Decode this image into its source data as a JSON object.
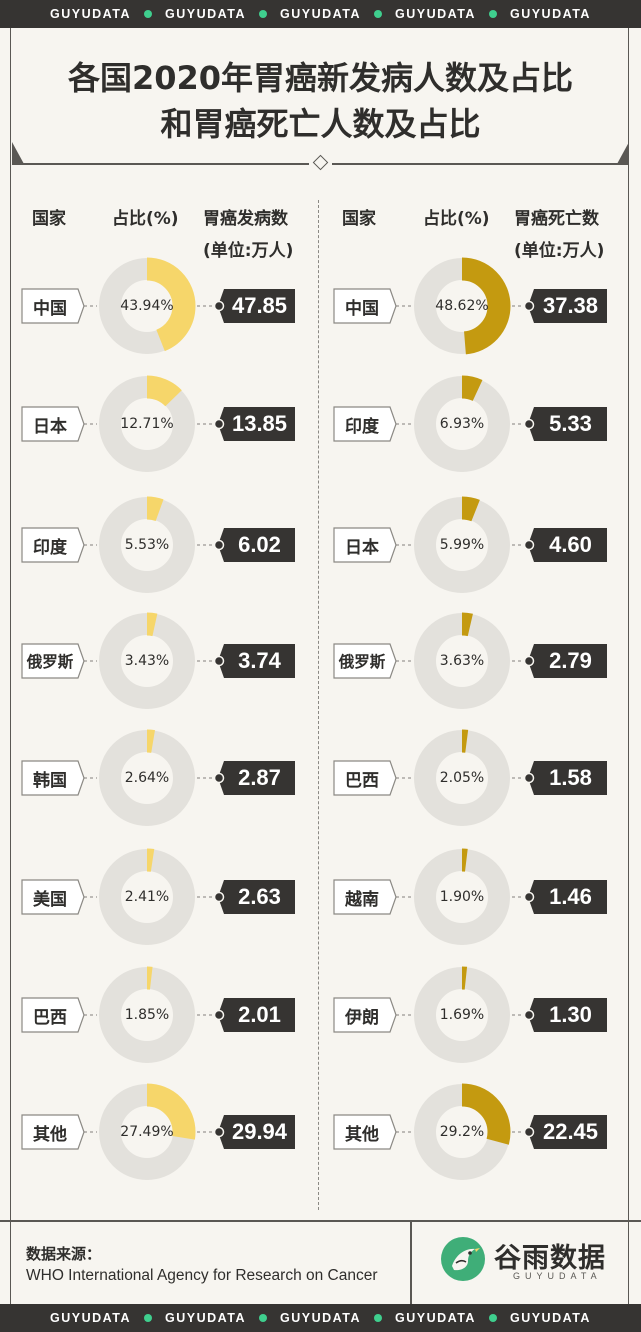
{
  "watermark": {
    "repeat_text": "GUYUDATA",
    "dot_color": "#3fcf8e"
  },
  "title": {
    "line1": "各国2020年胃癌新发病人数及占比",
    "line2": "和胃癌死亡人数及占比"
  },
  "headers": {
    "left": {
      "country": "国家",
      "share": "占比(%)",
      "value": "胃癌发病数",
      "unit": "(单位:万人)"
    },
    "right": {
      "country": "国家",
      "share": "占比(%)",
      "value": "胃癌死亡数",
      "unit": "(单位:万人)"
    }
  },
  "colors": {
    "incidence_fill": "#f6d66a",
    "mortality_fill": "#c49a10",
    "ring_track": "#e3e1dc",
    "value_tag": "#363432"
  },
  "chart_data": [
    {
      "type": "pie",
      "title": "",
      "value_label": "胃癌发病数",
      "unit": "万人",
      "categories": [
        "中国",
        "日本",
        "印度",
        "俄罗斯",
        "韩国",
        "美国",
        "巴西",
        "其他"
      ],
      "share_labels": [
        "43.94%",
        "12.71%",
        "5.53%",
        "3.43%",
        "2.64%",
        "2.41%",
        "1.85%",
        "27.49%"
      ],
      "shares": [
        43.94,
        12.71,
        5.53,
        3.43,
        2.64,
        2.41,
        1.85,
        27.49
      ],
      "value_labels": [
        "47.85",
        "13.85",
        "6.02",
        "3.74",
        "2.87",
        "2.63",
        "2.01",
        "29.94"
      ],
      "values": [
        47.85,
        13.85,
        6.02,
        3.74,
        2.87,
        2.63,
        2.01,
        29.94
      ]
    },
    {
      "type": "pie",
      "title": "",
      "value_label": "胃癌死亡数",
      "unit": "万人",
      "categories": [
        "中国",
        "印度",
        "日本",
        "俄罗斯",
        "巴西",
        "越南",
        "伊朗",
        "其他"
      ],
      "share_labels": [
        "48.62%",
        "6.93%",
        "5.99%",
        "3.63%",
        "2.05%",
        "1.90%",
        "1.69%",
        "29.2%"
      ],
      "shares": [
        48.62,
        6.93,
        5.99,
        3.63,
        2.05,
        1.9,
        1.69,
        29.2
      ],
      "value_labels": [
        "37.38",
        "5.33",
        "4.60",
        "2.79",
        "1.58",
        "1.46",
        "1.30",
        "22.45"
      ],
      "values": [
        37.38,
        5.33,
        4.6,
        2.79,
        1.58,
        1.46,
        1.3,
        22.45
      ]
    }
  ],
  "footer": {
    "source_title": "数据来源：",
    "source_text": "WHO International Agency for Research on Cancer",
    "brand_cn": "谷雨数据",
    "brand_en": "GUYUDATA"
  }
}
